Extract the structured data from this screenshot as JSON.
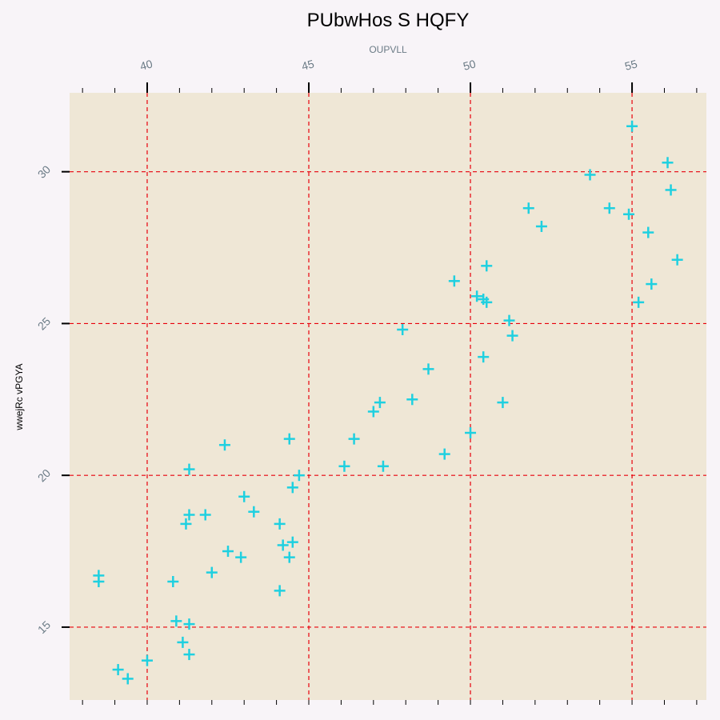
{
  "chart_data": {
    "type": "scatter",
    "title": "PUbwHos S HQFY",
    "xlabel": "OUPVLL",
    "ylabel": "wwejRc vPGYA",
    "xlim": [
      37.6,
      57.3
    ],
    "ylim": [
      12.6,
      32.6
    ],
    "x_ticks": [
      "40",
      "45",
      "50",
      "55"
    ],
    "y_ticks": [
      "15",
      "20",
      "25",
      "30"
    ],
    "x_axis_position": "top",
    "grid": true,
    "colors": {
      "background": "#f8f4f8",
      "plot_bg": "#efe7d6",
      "grid": "#e8000b",
      "marker": "#1fd0e0"
    },
    "series": [
      {
        "marker": "plus",
        "points": [
          [
            38.5,
            16.7
          ],
          [
            38.5,
            16.5
          ],
          [
            39.1,
            13.6
          ],
          [
            39.4,
            13.3
          ],
          [
            40.0,
            13.9
          ],
          [
            40.8,
            16.5
          ],
          [
            40.9,
            15.2
          ],
          [
            41.1,
            14.5
          ],
          [
            41.2,
            18.4
          ],
          [
            41.3,
            18.7
          ],
          [
            41.3,
            15.1
          ],
          [
            41.3,
            14.1
          ],
          [
            41.3,
            20.2
          ],
          [
            41.8,
            18.7
          ],
          [
            42.0,
            16.8
          ],
          [
            42.4,
            21.0
          ],
          [
            42.5,
            17.5
          ],
          [
            42.9,
            17.3
          ],
          [
            43.0,
            19.3
          ],
          [
            43.3,
            18.8
          ],
          [
            44.1,
            18.4
          ],
          [
            44.2,
            17.7
          ],
          [
            44.1,
            16.2
          ],
          [
            44.4,
            21.2
          ],
          [
            44.4,
            17.3
          ],
          [
            44.5,
            19.6
          ],
          [
            44.5,
            17.8
          ],
          [
            44.7,
            20.0
          ],
          [
            46.1,
            20.3
          ],
          [
            46.4,
            21.2
          ],
          [
            47.0,
            22.1
          ],
          [
            47.2,
            22.4
          ],
          [
            47.3,
            20.3
          ],
          [
            47.9,
            24.8
          ],
          [
            48.2,
            22.5
          ],
          [
            48.7,
            23.5
          ],
          [
            49.2,
            20.7
          ],
          [
            49.5,
            26.4
          ],
          [
            50.0,
            21.4
          ],
          [
            50.2,
            25.9
          ],
          [
            50.4,
            25.8
          ],
          [
            50.4,
            23.9
          ],
          [
            50.5,
            26.9
          ],
          [
            50.5,
            25.7
          ],
          [
            51.0,
            22.4
          ],
          [
            51.2,
            25.1
          ],
          [
            51.3,
            24.6
          ],
          [
            51.8,
            28.8
          ],
          [
            52.2,
            28.2
          ],
          [
            53.7,
            29.9
          ],
          [
            54.3,
            28.8
          ],
          [
            54.9,
            28.6
          ],
          [
            55.0,
            31.5
          ],
          [
            55.2,
            25.7
          ],
          [
            55.5,
            28.0
          ],
          [
            55.6,
            26.3
          ],
          [
            56.1,
            30.3
          ],
          [
            56.2,
            29.4
          ],
          [
            56.4,
            27.1
          ]
        ]
      }
    ]
  }
}
